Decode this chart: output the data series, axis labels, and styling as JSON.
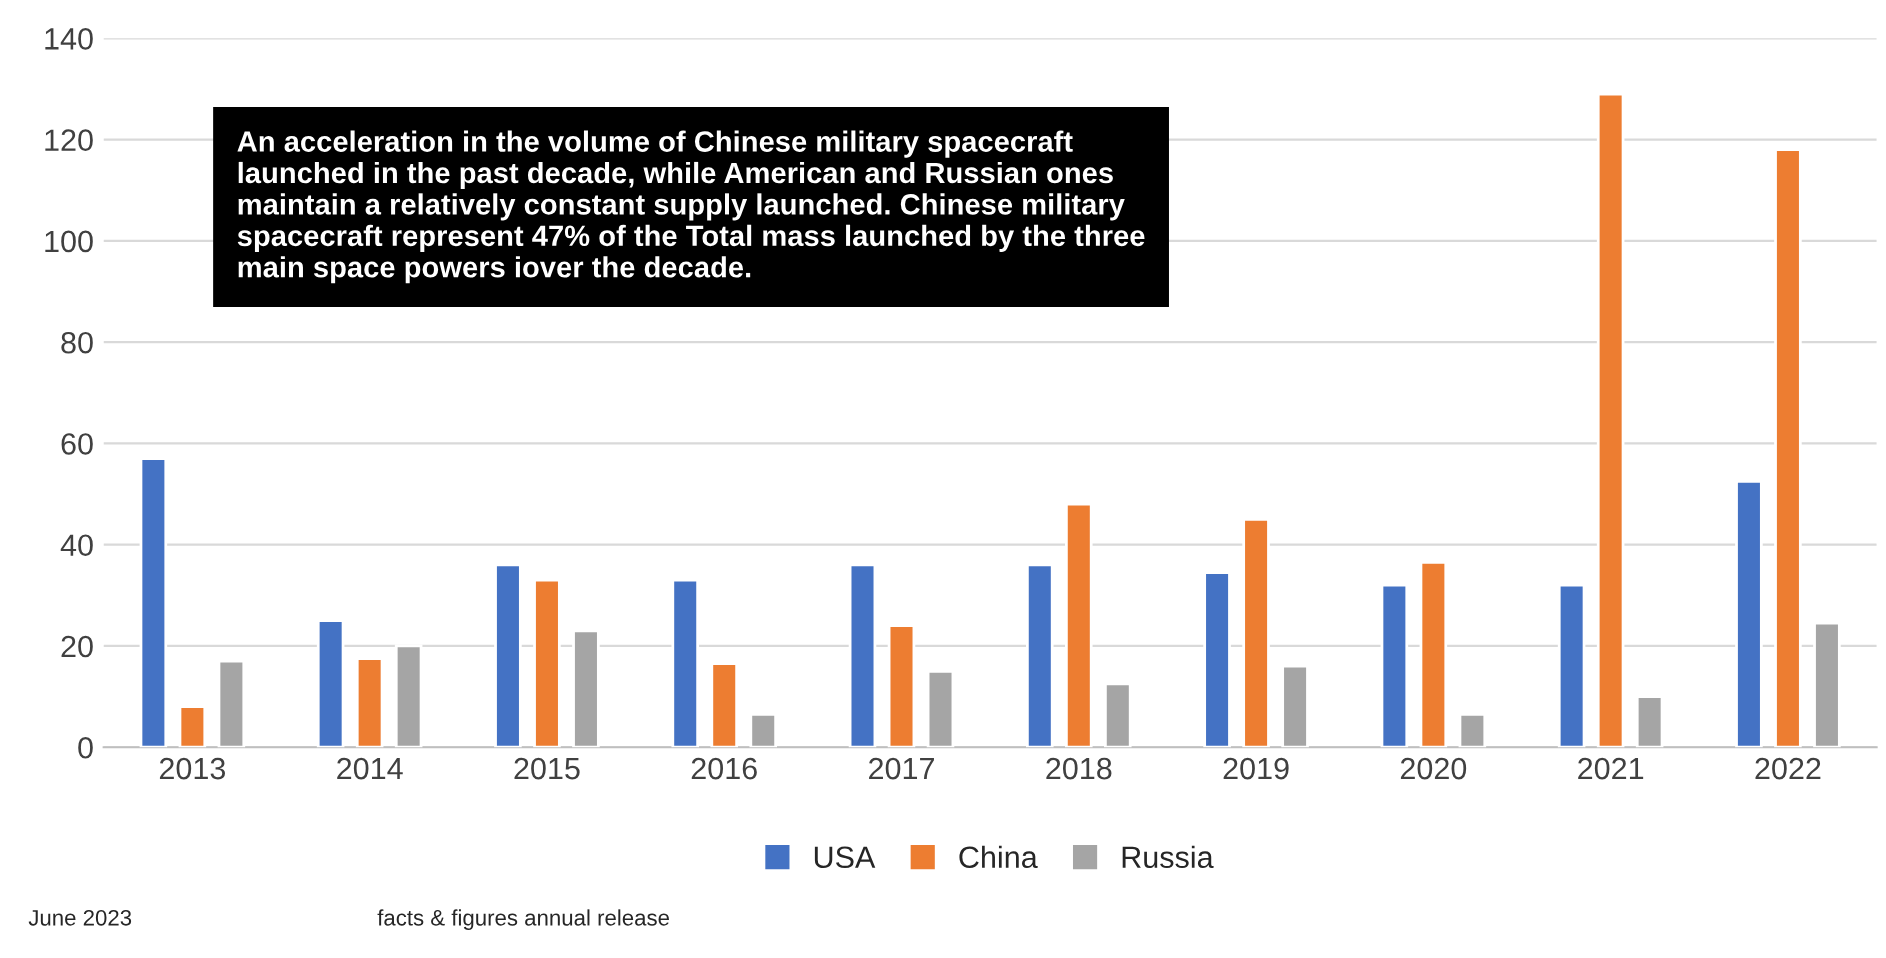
{
  "chart_data": {
    "type": "bar",
    "categories": [
      "2013",
      "2014",
      "2015",
      "2016",
      "2017",
      "2018",
      "2019",
      "2020",
      "2021",
      "2022"
    ],
    "series": [
      {
        "name": "USA",
        "color": "#4472c4",
        "values": [
          57,
          25,
          36,
          33,
          36,
          36,
          34.5,
          32,
          32,
          52.5
        ]
      },
      {
        "name": "China",
        "color": "#ed7d31",
        "values": [
          8,
          17.5,
          33,
          16.5,
          24,
          48,
          45,
          36.5,
          129,
          118
        ]
      },
      {
        "name": "Russia",
        "color": "#a5a5a5",
        "values": [
          17,
          20,
          23,
          6.5,
          15,
          12.5,
          16,
          6.5,
          10,
          24.5
        ]
      }
    ],
    "ylim": [
      0,
      140
    ],
    "yticks": [
      0,
      20,
      40,
      60,
      80,
      100,
      120,
      140
    ],
    "grid": "y",
    "legend": "bottom",
    "annotations": [
      "An acceleration in the volume of Chinese military spacecraft launched in the past decade, while American and Russian ones maintain a relatively constant supply launched. Chinese military spacecraft represent 47% of the Total mass launched by the three main space powers iover the decade.",
      "June 2023",
      "facts & figures annual release"
    ]
  }
}
